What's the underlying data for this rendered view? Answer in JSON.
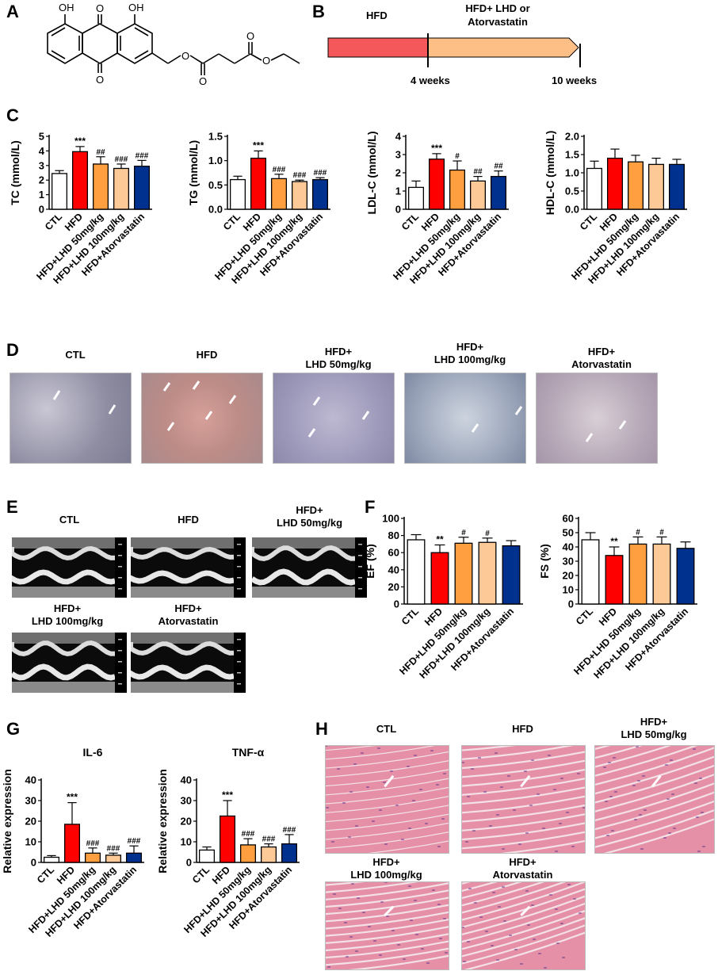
{
  "panels": {
    "a": "A",
    "b": "B",
    "c": "C",
    "d": "D",
    "e": "E",
    "f": "F",
    "g": "G",
    "h": "H"
  },
  "structure": {
    "atoms": {
      "oh1": "OH",
      "oh2": "OH",
      "o_top": "O",
      "o_bottom": "O",
      "o_ester1": "O",
      "o_carbonyl1": "O",
      "o_carbonyl2": "O",
      "o_ester2": "O"
    },
    "description_colors": {
      "bond": "#000000"
    }
  },
  "timeline": {
    "phase1": "HFD",
    "phase2_line1": "HFD+ LHD or",
    "phase2_line2": "Atorvastatin",
    "t1": "4 weeks",
    "t2": "10 weeks",
    "colors": {
      "phase1": "#f4585a",
      "phase2": "#fdbf85"
    }
  },
  "group_labels": [
    "CTL",
    "HFD",
    "HFD+LHD 50mg/kg",
    "HFD+LHD 100mg/kg",
    "HFD+Atorvastatin"
  ],
  "group_colors": [
    "#ffffff",
    "#ff0000",
    "#ff9f40",
    "#fdc996",
    "#00318f"
  ],
  "chart_data": [
    {
      "id": "tc",
      "type": "bar",
      "ylabel": "TC (mmol/L)",
      "ylim": [
        0,
        5
      ],
      "yticks": [
        0,
        1,
        2,
        3,
        4,
        5
      ],
      "values": [
        2.45,
        3.95,
        3.1,
        2.8,
        2.95
      ],
      "errors": [
        0.2,
        0.35,
        0.5,
        0.3,
        0.4
      ],
      "annotations": [
        "",
        "***",
        "##",
        "###",
        "###"
      ]
    },
    {
      "id": "tg",
      "type": "bar",
      "ylabel": "TG (mmol/L)",
      "ylim": [
        0,
        1.5
      ],
      "yticks": [
        0.0,
        0.5,
        1.0,
        1.5
      ],
      "values": [
        0.61,
        1.05,
        0.63,
        0.57,
        0.61
      ],
      "errors": [
        0.07,
        0.15,
        0.09,
        0.03,
        0.04
      ],
      "annotations": [
        "",
        "***",
        "###",
        "###",
        "###"
      ]
    },
    {
      "id": "ldl",
      "type": "bar",
      "ylabel": "LDL-C (mmol/L)",
      "ylim": [
        0,
        4
      ],
      "yticks": [
        0,
        1,
        2,
        3,
        4
      ],
      "values": [
        1.2,
        2.75,
        2.15,
        1.55,
        1.8
      ],
      "errors": [
        0.35,
        0.3,
        0.5,
        0.25,
        0.3
      ],
      "annotations": [
        "",
        "***",
        "#",
        "##",
        "##"
      ]
    },
    {
      "id": "hdl",
      "type": "bar",
      "ylabel": "HDL-C (mmol/L)",
      "ylim": [
        0,
        2.0
      ],
      "yticks": [
        0.0,
        0.5,
        1.0,
        1.5,
        2.0
      ],
      "values": [
        1.12,
        1.4,
        1.3,
        1.23,
        1.23
      ],
      "errors": [
        0.2,
        0.25,
        0.18,
        0.17,
        0.14
      ],
      "annotations": [
        "",
        "",
        "",
        "",
        ""
      ]
    },
    {
      "id": "ef",
      "type": "bar",
      "ylabel": "EF (%)",
      "ylim": [
        0,
        100
      ],
      "yticks": [
        0,
        20,
        40,
        60,
        80,
        100
      ],
      "values": [
        75,
        60,
        71,
        72,
        68
      ],
      "errors": [
        6,
        9,
        7,
        5,
        6
      ],
      "annotations": [
        "",
        "**",
        "#",
        "#",
        ""
      ]
    },
    {
      "id": "fs",
      "type": "bar",
      "ylabel": "FS (%)",
      "ylim": [
        0,
        60
      ],
      "yticks": [
        0,
        10,
        20,
        30,
        40,
        50,
        60
      ],
      "values": [
        45,
        34,
        42,
        42,
        39
      ],
      "errors": [
        5,
        6,
        5,
        5,
        4.5
      ],
      "annotations": [
        "",
        "**",
        "#",
        "#",
        ""
      ]
    },
    {
      "id": "il6",
      "type": "bar",
      "title": "IL-6",
      "ylabel": "Relative expression",
      "ylim": [
        0,
        40
      ],
      "yticks": [
        0,
        10,
        20,
        30,
        40
      ],
      "values": [
        2.5,
        18.5,
        4.5,
        3.5,
        4.5
      ],
      "errors": [
        0.8,
        10.5,
        2.5,
        1,
        3.5
      ],
      "annotations": [
        "",
        "***",
        "###",
        "###",
        "###"
      ]
    },
    {
      "id": "tnf",
      "type": "bar",
      "title": "TNF-α",
      "ylabel": "Relative expression",
      "ylim": [
        0,
        40
      ],
      "yticks": [
        0,
        10,
        20,
        30,
        40
      ],
      "values": [
        6,
        22.5,
        8.5,
        7.5,
        9
      ],
      "errors": [
        1.5,
        7.5,
        3,
        1.5,
        4.5
      ],
      "annotations": [
        "",
        "***",
        "###",
        "###",
        "###"
      ]
    }
  ],
  "histology_d": [
    {
      "line1": "CTL",
      "line2": ""
    },
    {
      "line1": "HFD",
      "line2": ""
    },
    {
      "line1": "HFD+",
      "line2": "LHD 50mg/kg"
    },
    {
      "line1": "HFD+",
      "line2": "LHD 100mg/kg"
    },
    {
      "line1": "HFD+",
      "line2": "Atorvastatin"
    }
  ],
  "echo_e": [
    {
      "line1": "CTL",
      "line2": ""
    },
    {
      "line1": "HFD",
      "line2": ""
    },
    {
      "line1": "HFD+",
      "line2": "LHD 50mg/kg"
    },
    {
      "line1": "HFD+",
      "line2": "LHD 100mg/kg"
    },
    {
      "line1": "HFD+",
      "line2": "Atorvastatin"
    }
  ],
  "histology_h": [
    {
      "line1": "CTL",
      "line2": ""
    },
    {
      "line1": "HFD",
      "line2": ""
    },
    {
      "line1": "HFD+",
      "line2": "LHD 50mg/kg"
    },
    {
      "line1": "HFD+",
      "line2": "LHD 100mg/kg"
    },
    {
      "line1": "HFD+",
      "line2": "Atorvastatin"
    }
  ]
}
